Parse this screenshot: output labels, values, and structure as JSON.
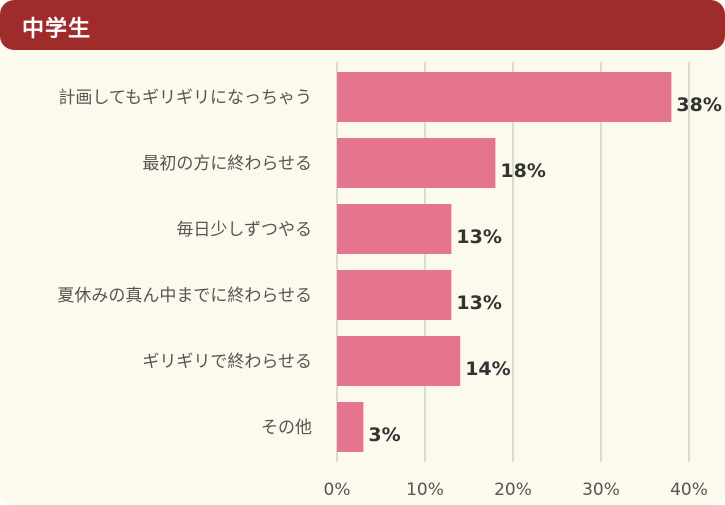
{
  "header": {
    "title": "中学生"
  },
  "colors": {
    "header_bg": "#9f2b2b",
    "card_bg": "#fcfaec",
    "bar": "#e5758f",
    "grid": "#cfcfcf",
    "label_text": "#555555",
    "value_text": "#333333"
  },
  "chart_data": {
    "type": "bar",
    "orientation": "horizontal",
    "title": "中学生",
    "categories": [
      "計画してもギリギリになっちゃう",
      "最初の方に終わらせる",
      "毎日少しずつやる",
      "夏休みの真ん中までに終わらせる",
      "ギリギリで終わらせる",
      "その他"
    ],
    "values": [
      38,
      18,
      13,
      13,
      14,
      3
    ],
    "value_labels": [
      "38%",
      "18%",
      "13%",
      "13%",
      "14%",
      "3%"
    ],
    "xlim": [
      0,
      40
    ],
    "xticks": [
      0,
      10,
      20,
      30,
      40
    ],
    "xtick_labels": [
      "0%",
      "10%",
      "20%",
      "30%",
      "40%"
    ],
    "grid": true,
    "legend": "none"
  }
}
